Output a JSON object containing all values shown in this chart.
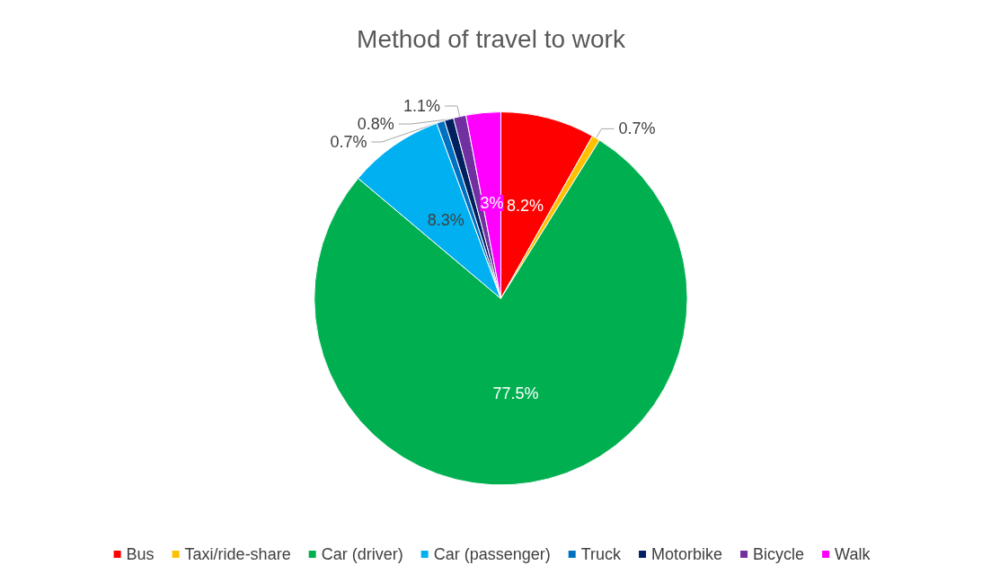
{
  "chart_data": {
    "type": "pie",
    "title": "Method of travel to work",
    "categories": [
      "Bus",
      "Taxi/ride-share",
      "Car (driver)",
      "Car (passenger)",
      "Truck",
      "Motorbike",
      "Bicycle",
      "Walk"
    ],
    "values": [
      8.2,
      0.7,
      77.5,
      8.3,
      0.7,
      0.8,
      1.1,
      3
    ],
    "value_labels": [
      "8.2%",
      "0.7%",
      "77.5%",
      "8.3%",
      "0.7%",
      "0.8%",
      "1.1%",
      "3%"
    ],
    "colors": [
      "#ff0000",
      "#ffc000",
      "#00b050",
      "#00b0f0",
      "#0070c0",
      "#002060",
      "#7030a0",
      "#ff00ff"
    ],
    "legend": "bottom"
  }
}
